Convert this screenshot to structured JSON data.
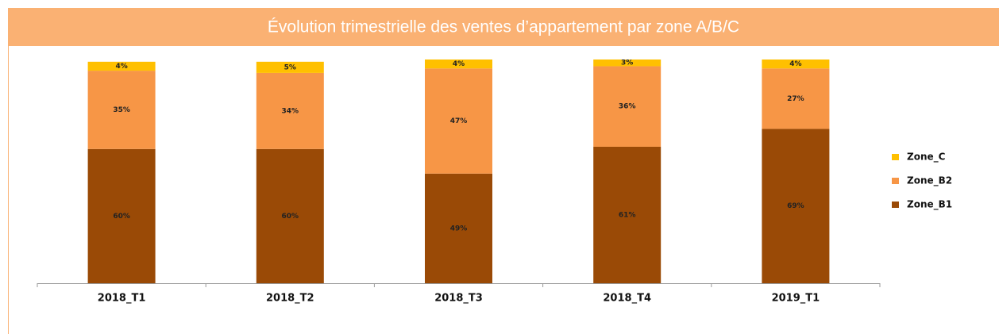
{
  "chart_data": {
    "type": "stacked_bar",
    "title": "Évolution trimestrielle des ventes d’appartement par zone A/B/C",
    "categories": [
      "2018_T1",
      "2018_T2",
      "2018_T3",
      "2018_T4",
      "2019_T1"
    ],
    "series": [
      {
        "name": "Zone_B1",
        "color": "#9a4a06",
        "values": [
          60,
          60,
          49,
          61,
          69
        ],
        "value_labels": [
          "60%",
          "60%",
          "49%",
          "61%",
          "69%"
        ]
      },
      {
        "name": "Zone_B2",
        "color": "#f79646",
        "values": [
          35,
          34,
          47,
          36,
          27
        ],
        "value_labels": [
          "35%",
          "34%",
          "47%",
          "36%",
          "27%"
        ]
      },
      {
        "name": "Zone_C",
        "color": "#ffc000",
        "values": [
          4,
          5,
          4,
          3,
          4
        ],
        "value_labels": [
          "4%",
          "5%",
          "4%",
          "3%",
          "4%"
        ]
      }
    ],
    "ylim": [
      0,
      100
    ],
    "legend": "right"
  }
}
